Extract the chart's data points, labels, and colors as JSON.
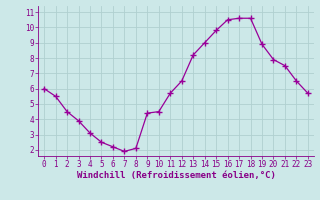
{
  "x": [
    0,
    1,
    2,
    3,
    4,
    5,
    6,
    7,
    8,
    9,
    10,
    11,
    12,
    13,
    14,
    15,
    16,
    17,
    18,
    19,
    20,
    21,
    22,
    23
  ],
  "y": [
    6.0,
    5.5,
    4.5,
    3.9,
    3.1,
    2.5,
    2.2,
    1.9,
    2.1,
    4.4,
    4.5,
    5.7,
    6.5,
    8.2,
    9.0,
    9.8,
    10.5,
    10.6,
    10.6,
    8.9,
    7.9,
    7.5,
    6.5,
    5.7
  ],
  "line_color": "#990099",
  "marker": "+",
  "marker_size": 4,
  "bg_color": "#cce8e8",
  "grid_color": "#b0d0d0",
  "xlabel": "Windchill (Refroidissement éolien,°C)",
  "ylabel_ticks": [
    2,
    3,
    4,
    5,
    6,
    7,
    8,
    9,
    10,
    11
  ],
  "xlabel_ticks": [
    0,
    1,
    2,
    3,
    4,
    5,
    6,
    7,
    8,
    9,
    10,
    11,
    12,
    13,
    14,
    15,
    16,
    17,
    18,
    19,
    20,
    21,
    22,
    23
  ],
  "ylim": [
    1.6,
    11.4
  ],
  "xlim": [
    -0.5,
    23.5
  ],
  "axis_label_color": "#880088",
  "tick_color": "#880088",
  "spine_color": "#880088",
  "xlabel_fontsize": 6.5,
  "tick_fontsize": 5.5,
  "line_width": 0.9
}
